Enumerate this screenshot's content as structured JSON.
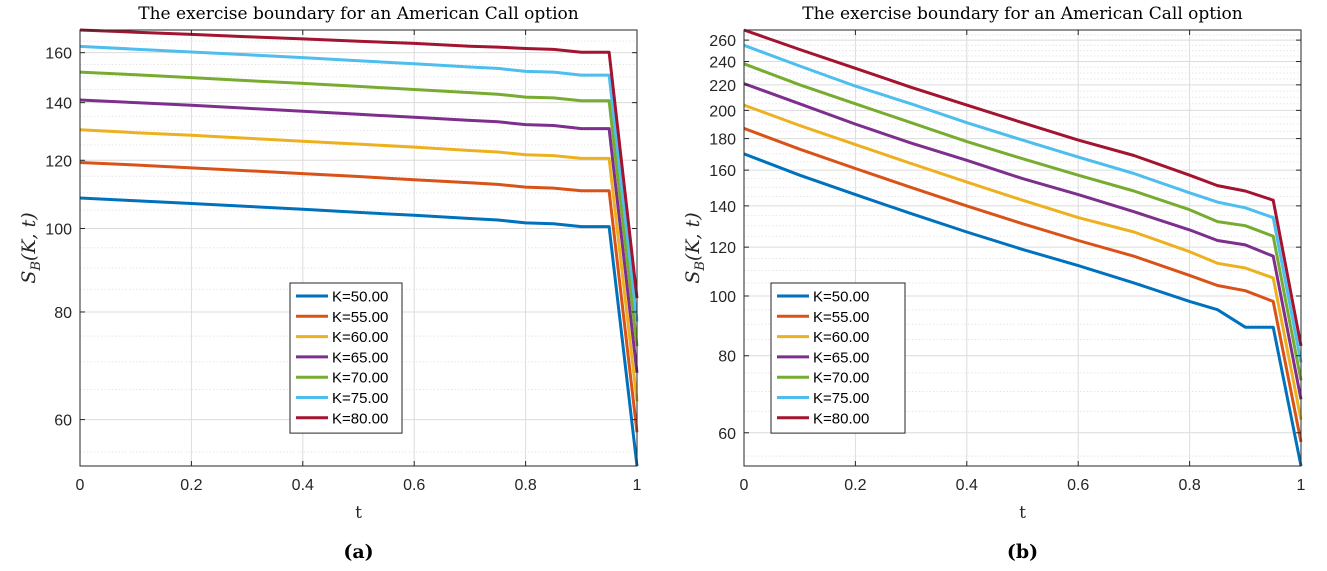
{
  "chart_data": [
    {
      "type": "line",
      "title": "The exercise boundary for an American Call option",
      "xlabel": "t",
      "ylabel": "S_B(K,t)",
      "caption": "(a)",
      "xlim": [
        0,
        1
      ],
      "ylim": [
        53,
        170
      ],
      "yscale": "log",
      "grid": true,
      "legend_position": "bottom-center",
      "xticks": [
        0,
        0.2,
        0.4,
        0.6,
        0.8,
        1
      ],
      "xtick_labels": [
        "0",
        "0.2",
        "0.4",
        "0.6",
        "0.8",
        "1"
      ],
      "yticks": [
        60,
        80,
        100,
        120,
        140,
        160
      ],
      "ytick_labels": [
        "60",
        "80",
        "100",
        "120",
        "140",
        "160"
      ],
      "x": [
        0,
        0.1,
        0.2,
        0.3,
        0.4,
        0.5,
        0.6,
        0.7,
        0.75,
        0.8,
        0.85,
        0.9,
        0.95,
        1.0
      ],
      "series": [
        {
          "name": "K=50.00",
          "color": "#0072BD",
          "values": [
            108.5,
            107.7,
            106.9,
            106.1,
            105.3,
            104.4,
            103.6,
            102.7,
            102.3,
            101.5,
            101.3,
            100.5,
            100.5,
            53
          ]
        },
        {
          "name": "K=55.00",
          "color": "#D95319",
          "values": [
            119.3,
            118.5,
            117.6,
            116.7,
            115.8,
            114.9,
            113.9,
            113.0,
            112.5,
            111.7,
            111.4,
            110.6,
            110.6,
            58
          ]
        },
        {
          "name": "K=60.00",
          "color": "#EDB120",
          "values": [
            130.2,
            129.2,
            128.3,
            127.3,
            126.3,
            125.3,
            124.3,
            123.2,
            122.7,
            121.8,
            121.5,
            120.6,
            120.6,
            63
          ]
        },
        {
          "name": "K=65.00",
          "color": "#7E2F8E",
          "values": [
            141.0,
            140.0,
            139.0,
            137.9,
            136.8,
            135.7,
            134.6,
            133.5,
            133.0,
            132.0,
            131.7,
            130.6,
            130.6,
            68
          ]
        },
        {
          "name": "K=70.00",
          "color": "#77AC30",
          "values": [
            151.9,
            150.8,
            149.7,
            148.5,
            147.4,
            146.2,
            145.0,
            143.8,
            143.2,
            142.1,
            141.8,
            140.7,
            140.7,
            73
          ]
        },
        {
          "name": "K=75.00",
          "color": "#4DBEEE",
          "values": [
            162.7,
            161.5,
            160.3,
            159.1,
            157.9,
            156.6,
            155.3,
            154.0,
            153.4,
            152.2,
            151.9,
            150.7,
            150.7,
            78
          ]
        },
        {
          "name": "K=80.00",
          "color": "#A2142F",
          "values": [
            170.0,
            169.0,
            168.0,
            167.0,
            166.0,
            165.0,
            164.0,
            162.8,
            162.4,
            161.8,
            161.4,
            160.2,
            160.2,
            83
          ]
        }
      ]
    },
    {
      "type": "line",
      "title": "The exercise boundary for an American Call option",
      "xlabel": "t",
      "ylabel": "S_B(K,t)",
      "caption": "(b)",
      "xlim": [
        0,
        1
      ],
      "ylim": [
        53,
        270
      ],
      "yscale": "log",
      "grid": true,
      "legend_position": "bottom-left",
      "xticks": [
        0,
        0.2,
        0.4,
        0.6,
        0.8,
        1
      ],
      "xtick_labels": [
        "0",
        "0.2",
        "0.4",
        "0.6",
        "0.8",
        "1"
      ],
      "yticks": [
        60,
        80,
        100,
        120,
        140,
        160,
        180,
        200,
        220,
        240,
        260
      ],
      "ytick_labels": [
        "60",
        "80",
        "100",
        "120",
        "140",
        "160",
        "180",
        "200",
        "220",
        "240",
        "260"
      ],
      "x": [
        0,
        0.1,
        0.2,
        0.3,
        0.4,
        0.5,
        0.6,
        0.7,
        0.8,
        0.85,
        0.9,
        0.95,
        1.0
      ],
      "series": [
        {
          "name": "K=50.00",
          "color": "#0072BD",
          "values": [
            170,
            157,
            146,
            136,
            127,
            119,
            112,
            105,
            98,
            95,
            89,
            89,
            53
          ]
        },
        {
          "name": "K=55.00",
          "color": "#D95319",
          "values": [
            187,
            173,
            161,
            150,
            140,
            131,
            123,
            116,
            108,
            104,
            102,
            98,
            58
          ]
        },
        {
          "name": "K=60.00",
          "color": "#EDB120",
          "values": [
            204,
            189,
            176,
            164,
            153,
            143,
            134,
            127,
            118,
            113,
            111,
            107,
            63
          ]
        },
        {
          "name": "K=65.00",
          "color": "#7E2F8E",
          "values": [
            221,
            205,
            190,
            177,
            166,
            155,
            146,
            137,
            128,
            123,
            121,
            116,
            68
          ]
        },
        {
          "name": "K=70.00",
          "color": "#77AC30",
          "values": [
            238,
            220,
            205,
            191,
            178,
            167,
            157,
            148,
            138,
            132,
            130,
            125,
            73
          ]
        },
        {
          "name": "K=75.00",
          "color": "#4DBEEE",
          "values": [
            255,
            236,
            219,
            205,
            191,
            179,
            168,
            158,
            147,
            142,
            139,
            134,
            78
          ]
        },
        {
          "name": "K=80.00",
          "color": "#A2142F",
          "values": [
            270,
            251,
            234,
            218,
            204,
            191,
            179,
            169,
            157,
            151,
            148,
            143,
            83
          ]
        }
      ]
    }
  ]
}
